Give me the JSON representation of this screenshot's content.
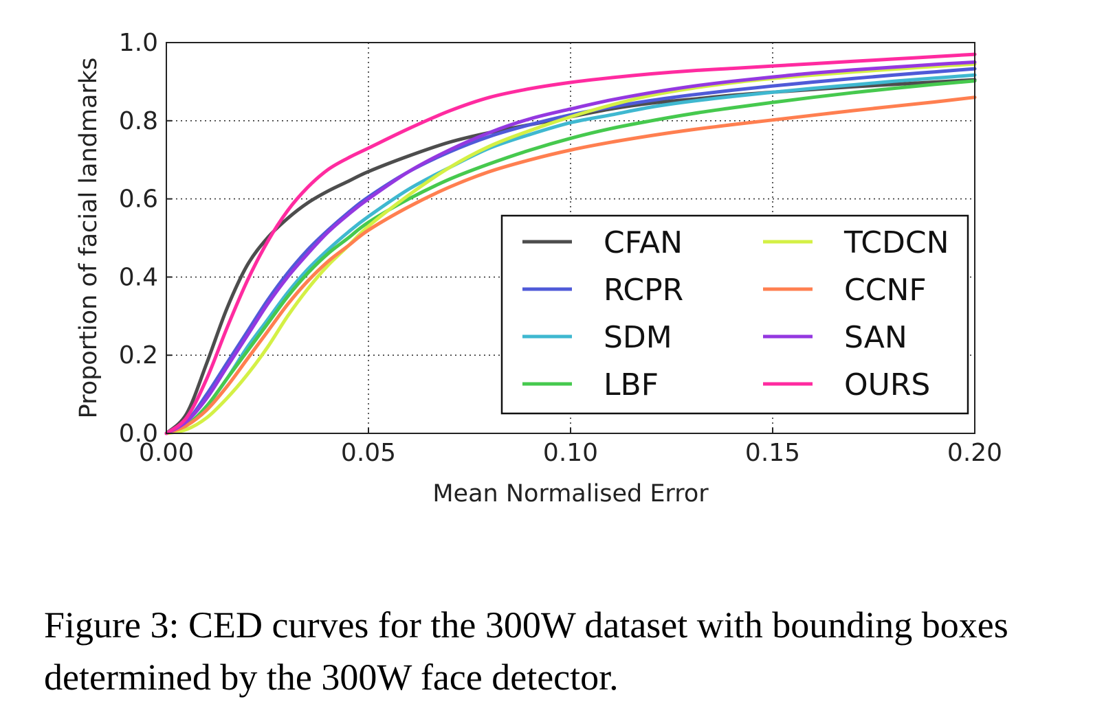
{
  "chart_data": {
    "type": "line",
    "title": "",
    "xlabel": "Mean Normalised Error",
    "ylabel": "Proportion of facial landmarks",
    "xlim": [
      0.0,
      0.2
    ],
    "ylim": [
      0.0,
      1.0
    ],
    "xticks": [
      "0.00",
      "0.05",
      "0.10",
      "0.15",
      "0.20"
    ],
    "yticks": [
      "0.0",
      "0.2",
      "0.4",
      "0.6",
      "0.8",
      "1.0"
    ],
    "grid": true,
    "legend_position": "center-right",
    "legend_columns": 2,
    "x": [
      0.0,
      0.005,
      0.01,
      0.015,
      0.02,
      0.025,
      0.03,
      0.035,
      0.04,
      0.045,
      0.05,
      0.06,
      0.07,
      0.08,
      0.09,
      0.1,
      0.11,
      0.12,
      0.13,
      0.14,
      0.15,
      0.16,
      0.17,
      0.18,
      0.19,
      0.2
    ],
    "series": [
      {
        "name": "CFAN",
        "color": "#4d4d4d",
        "values": [
          0.0,
          0.05,
          0.18,
          0.32,
          0.43,
          0.5,
          0.55,
          0.59,
          0.62,
          0.645,
          0.67,
          0.71,
          0.745,
          0.77,
          0.79,
          0.81,
          0.83,
          0.845,
          0.855,
          0.865,
          0.873,
          0.88,
          0.887,
          0.893,
          0.899,
          0.905
        ]
      },
      {
        "name": "RCPR",
        "color": "#4f5ad8",
        "values": [
          0.0,
          0.03,
          0.1,
          0.18,
          0.26,
          0.34,
          0.41,
          0.47,
          0.52,
          0.565,
          0.605,
          0.67,
          0.72,
          0.76,
          0.79,
          0.815,
          0.835,
          0.852,
          0.866,
          0.878,
          0.889,
          0.899,
          0.908,
          0.917,
          0.925,
          0.933
        ]
      },
      {
        "name": "SDM",
        "color": "#3fb8d0",
        "values": [
          0.0,
          0.02,
          0.07,
          0.14,
          0.22,
          0.29,
          0.36,
          0.42,
          0.47,
          0.515,
          0.555,
          0.625,
          0.68,
          0.73,
          0.765,
          0.795,
          0.815,
          0.835,
          0.85,
          0.862,
          0.873,
          0.883,
          0.892,
          0.901,
          0.909,
          0.917
        ]
      },
      {
        "name": "LBF",
        "color": "#46c94e",
        "values": [
          0.0,
          0.02,
          0.07,
          0.14,
          0.21,
          0.28,
          0.35,
          0.41,
          0.46,
          0.5,
          0.54,
          0.6,
          0.65,
          0.69,
          0.725,
          0.755,
          0.78,
          0.8,
          0.818,
          0.833,
          0.847,
          0.86,
          0.872,
          0.883,
          0.893,
          0.902
        ]
      },
      {
        "name": "TCDCN",
        "color": "#d4f045",
        "values": [
          0.0,
          0.01,
          0.04,
          0.09,
          0.15,
          0.22,
          0.3,
          0.37,
          0.43,
          0.48,
          0.53,
          0.61,
          0.68,
          0.735,
          0.775,
          0.81,
          0.84,
          0.865,
          0.883,
          0.897,
          0.908,
          0.917,
          0.925,
          0.932,
          0.939,
          0.945
        ]
      },
      {
        "name": "CCNF",
        "color": "#ff7f50",
        "values": [
          0.0,
          0.02,
          0.06,
          0.12,
          0.19,
          0.26,
          0.33,
          0.39,
          0.44,
          0.48,
          0.52,
          0.58,
          0.63,
          0.67,
          0.7,
          0.725,
          0.745,
          0.762,
          0.777,
          0.79,
          0.802,
          0.814,
          0.826,
          0.837,
          0.848,
          0.86
        ]
      },
      {
        "name": "SAN",
        "color": "#9438e0",
        "values": [
          0.0,
          0.03,
          0.09,
          0.17,
          0.25,
          0.33,
          0.4,
          0.46,
          0.515,
          0.56,
          0.6,
          0.67,
          0.725,
          0.77,
          0.805,
          0.83,
          0.853,
          0.872,
          0.888,
          0.901,
          0.912,
          0.922,
          0.93,
          0.937,
          0.944,
          0.95
        ]
      },
      {
        "name": "OURS",
        "color": "#ff2ba0",
        "values": [
          0.0,
          0.04,
          0.14,
          0.27,
          0.39,
          0.49,
          0.57,
          0.63,
          0.675,
          0.705,
          0.73,
          0.78,
          0.825,
          0.86,
          0.882,
          0.898,
          0.91,
          0.92,
          0.928,
          0.934,
          0.94,
          0.946,
          0.952,
          0.958,
          0.964,
          0.97
        ]
      }
    ]
  },
  "caption": {
    "text": "Figure 3: CED curves for the 300W dataset with bounding boxes determined by the 300W face detector."
  }
}
